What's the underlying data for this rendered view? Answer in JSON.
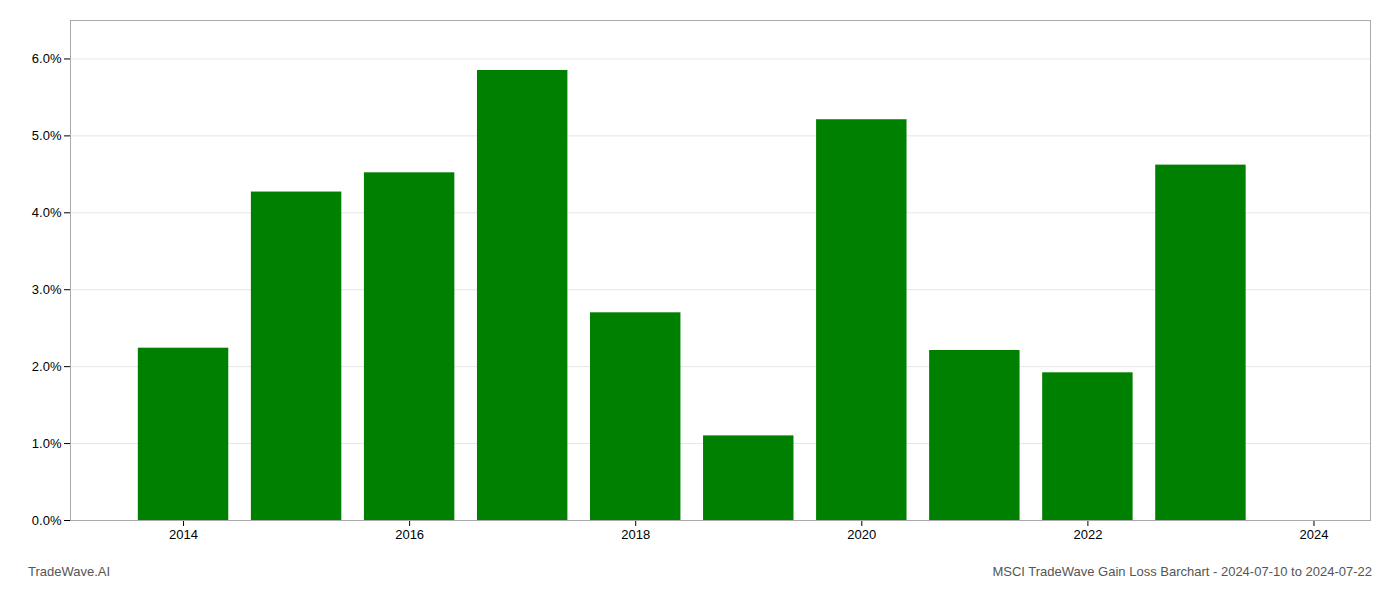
{
  "chart_data": {
    "type": "bar",
    "x": [
      2014,
      2015,
      2016,
      2017,
      2018,
      2019,
      2020,
      2021,
      2022,
      2023
    ],
    "values": [
      0.0224,
      0.0427,
      0.0452,
      0.0585,
      0.027,
      0.011,
      0.0521,
      0.0221,
      0.0192,
      0.0462
    ],
    "color": "#008000",
    "xlim": [
      2013.0,
      2024.5
    ],
    "xticks": [
      2014,
      2016,
      2018,
      2020,
      2022,
      2024
    ],
    "ylim": [
      0.0,
      0.065
    ],
    "yticks": [
      {
        "value": 0.0,
        "label": "0.0%"
      },
      {
        "value": 0.01,
        "label": "1.0%"
      },
      {
        "value": 0.02,
        "label": "2.0%"
      },
      {
        "value": 0.03,
        "label": "3.0%"
      },
      {
        "value": 0.04,
        "label": "4.0%"
      },
      {
        "value": 0.05,
        "label": "5.0%"
      },
      {
        "value": 0.06,
        "label": "6.0%"
      }
    ],
    "grid": true,
    "annotations": [
      "TradeWave.AI",
      "MSCI TradeWave Gain Loss Barchart - 2024-07-10 to 2024-07-22"
    ]
  }
}
